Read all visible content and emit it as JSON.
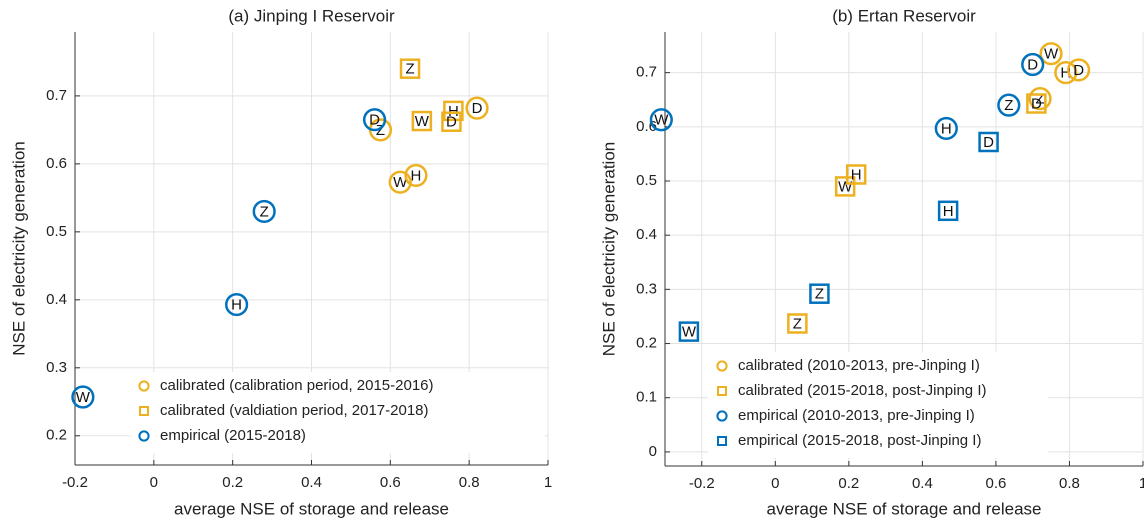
{
  "chart_data": [
    {
      "type": "scatter",
      "title": "(a) Jinping I Reservoir",
      "xlabel": "average NSE of storage and release",
      "ylabel": "NSE of electricity generation",
      "xlim": [
        -0.2,
        1
      ],
      "ylim": [
        0.157,
        0.794
      ],
      "xticks": [
        -0.2,
        0,
        0.2,
        0.4,
        0.6,
        0.8,
        1
      ],
      "yticks": [
        0.2,
        0.3,
        0.4,
        0.5,
        0.6,
        0.7
      ],
      "grid": true,
      "legend": "lower center",
      "series": [
        {
          "name": "calibrated (calibration period, 2015-2016)",
          "color": "#EDB120",
          "marker": "circle",
          "labels": [
            "D",
            "Z",
            "W",
            "H"
          ],
          "x": [
            0.82,
            0.575,
            0.625,
            0.665
          ],
          "values": [
            0.682,
            0.65,
            0.573,
            0.583
          ]
        },
        {
          "name": "calibrated (valdiation period, 2017-2018)",
          "color": "#EDB120",
          "marker": "square",
          "labels": [
            "Z",
            "W",
            "H",
            "D"
          ],
          "x": [
            0.65,
            0.68,
            0.76,
            0.755
          ],
          "values": [
            0.74,
            0.663,
            0.678,
            0.662
          ]
        },
        {
          "name": "empirical (2015-2018)",
          "color": "#0072BD",
          "marker": "circle",
          "labels": [
            "D",
            "Z",
            "H",
            "W"
          ],
          "x": [
            0.56,
            0.28,
            0.21,
            -0.18
          ],
          "values": [
            0.665,
            0.53,
            0.393,
            0.257
          ]
        }
      ]
    },
    {
      "type": "scatter",
      "title": "(b) Ertan Reservoir",
      "xlabel": "average NSE of storage and release",
      "ylabel": "NSE of electricity generation",
      "xlim": [
        -0.3,
        1
      ],
      "ylim": [
        -0.026,
        0.775
      ],
      "xticks": [
        -0.2,
        0,
        0.2,
        0.4,
        0.6,
        0.8,
        1
      ],
      "yticks": [
        0,
        0.1,
        0.2,
        0.3,
        0.4,
        0.5,
        0.6,
        0.7
      ],
      "grid": true,
      "legend": "lower right",
      "series": [
        {
          "name": "calibrated (2010-2013, pre-Jinping I)",
          "color": "#EDB120",
          "marker": "circle",
          "labels": [
            "W",
            "H",
            "D",
            "Z"
          ],
          "x": [
            0.75,
            0.79,
            0.825,
            0.72
          ],
          "values": [
            0.735,
            0.7,
            0.705,
            0.652
          ]
        },
        {
          "name": "calibrated (2015-2018, post-Jinping I)",
          "color": "#EDB120",
          "marker": "square",
          "labels": [
            "W",
            "H",
            "Z",
            "D"
          ],
          "x": [
            0.19,
            0.22,
            0.06,
            0.71
          ],
          "values": [
            0.49,
            0.512,
            0.237,
            0.643
          ]
        },
        {
          "name": "empirical (2010-2013, pre-Jinping I)",
          "color": "#0072BD",
          "marker": "circle",
          "labels": [
            "W",
            "D",
            "Z",
            "H"
          ],
          "x": [
            -0.31,
            0.7,
            0.635,
            0.465
          ],
          "values": [
            0.613,
            0.715,
            0.64,
            0.597
          ]
        },
        {
          "name": "empirical (2015-2018, post-Jinping I)",
          "color": "#0072BD",
          "marker": "square",
          "labels": [
            "D",
            "H",
            "Z",
            "W"
          ],
          "x": [
            0.58,
            0.47,
            0.12,
            -0.235
          ],
          "values": [
            0.572,
            0.445,
            0.292,
            0.222
          ]
        }
      ]
    }
  ]
}
